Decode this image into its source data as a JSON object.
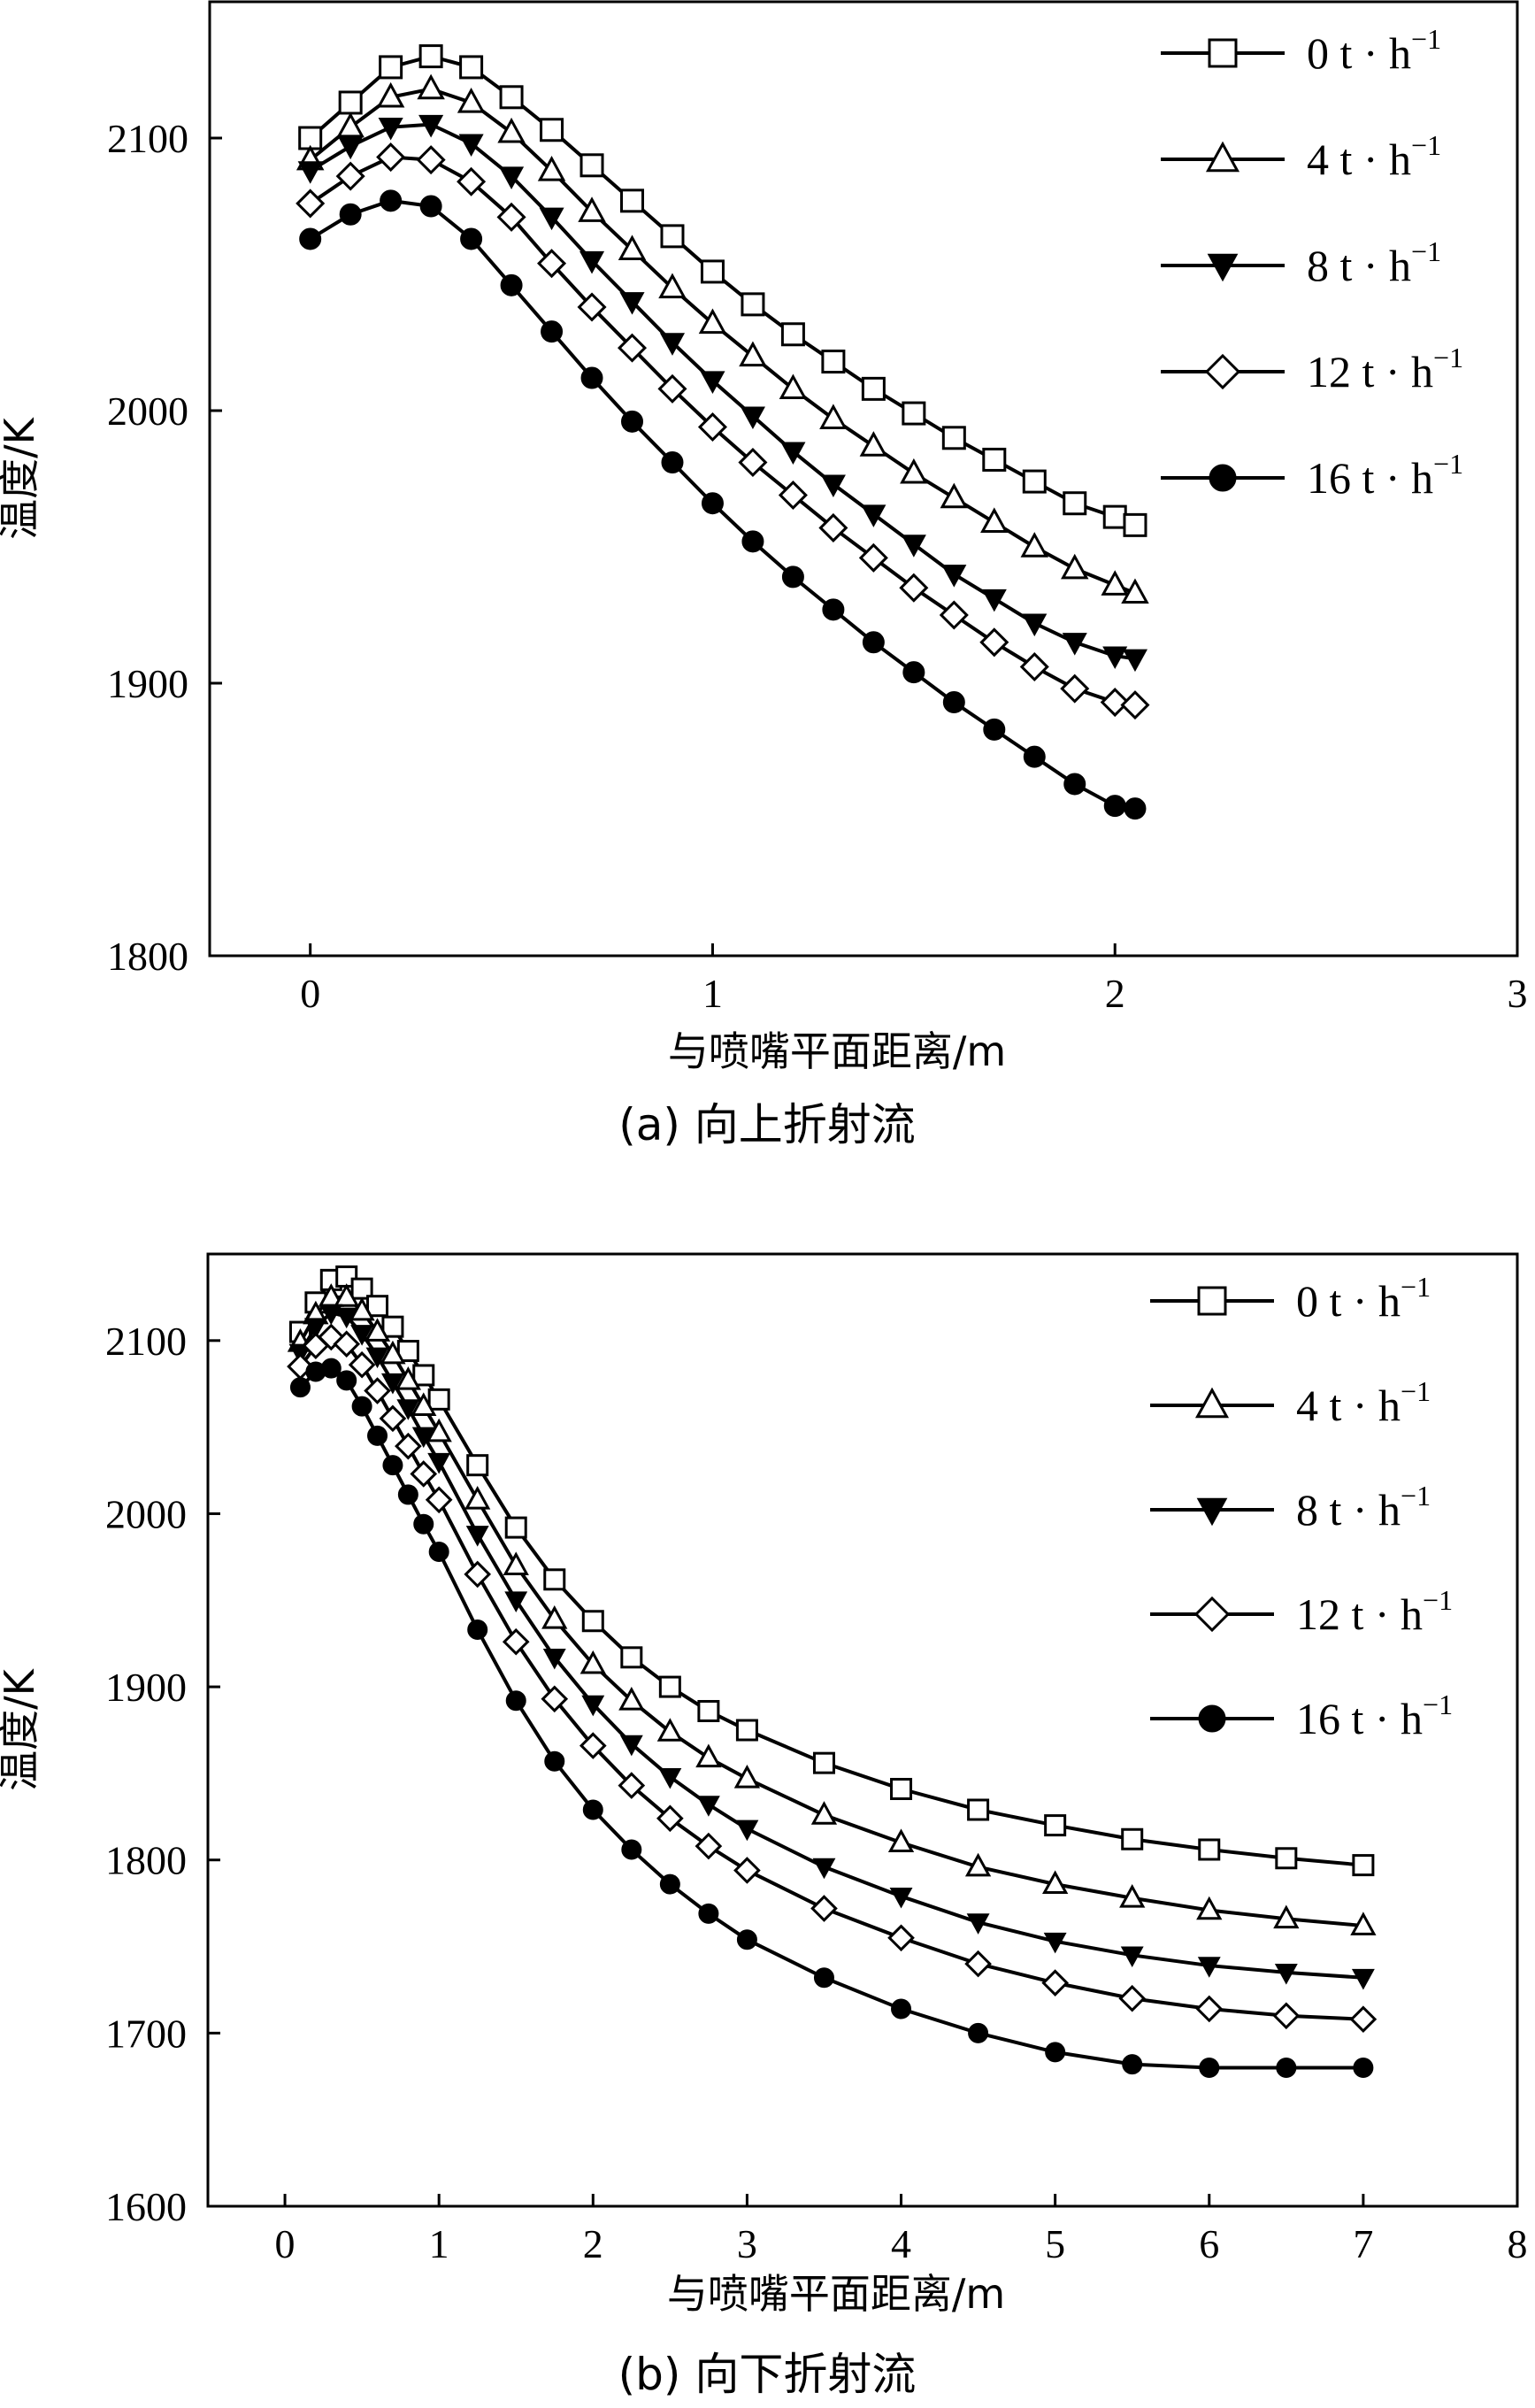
{
  "figure": {
    "panels": [
      {
        "caption": "(a) 向上折射流",
        "xlabel": "与喷嘴平面距离/m",
        "ylabel": "温度/K",
        "legend_unit": "t · h",
        "legend_exp": "−1"
      },
      {
        "caption": "(b) 向下折射流",
        "xlabel": "与喷嘴平面距离/m",
        "ylabel": "温度/K",
        "legend_unit": "t · h",
        "legend_exp": "−1"
      }
    ]
  },
  "chart_data": [
    {
      "type": "line",
      "title": "(a) 向上折射流",
      "xlabel": "与喷嘴平面距离/m",
      "ylabel": "温度/K",
      "xlim": [
        -0.25,
        3
      ],
      "ylim": [
        1800,
        2150
      ],
      "xticks": [
        0,
        1,
        2,
        3
      ],
      "yticks": [
        1800,
        1900,
        2000,
        2100
      ],
      "grid": false,
      "legend_position": "top-right",
      "x": [
        0,
        0.1,
        0.2,
        0.3,
        0.4,
        0.5,
        0.6,
        0.7,
        0.8,
        0.9,
        1.0,
        1.1,
        1.2,
        1.3,
        1.4,
        1.5,
        1.6,
        1.7,
        1.8,
        1.9,
        2.0,
        2.05
      ],
      "series": [
        {
          "name": "0",
          "marker": "square-open",
          "values": [
            2100,
            2113,
            2126,
            2130,
            2126,
            2115,
            2103,
            2090,
            2077,
            2064,
            2051,
            2039,
            2028,
            2018,
            2008,
            1999,
            1990,
            1982,
            1974,
            1966,
            1961,
            1958
          ]
        },
        {
          "name": "4",
          "marker": "triangle-open",
          "values": [
            2092,
            2104,
            2115,
            2118,
            2113,
            2102,
            2088,
            2073,
            2059,
            2045,
            2032,
            2020,
            2008,
            1997,
            1987,
            1977,
            1968,
            1959,
            1950,
            1942,
            1936,
            1933
          ]
        },
        {
          "name": "8",
          "marker": "triangle-down-filled",
          "values": [
            2088,
            2097,
            2104,
            2105,
            2098,
            2086,
            2071,
            2055,
            2040,
            2025,
            2011,
            1998,
            1985,
            1973,
            1962,
            1951,
            1940,
            1931,
            1922,
            1915,
            1910,
            1909
          ]
        },
        {
          "name": "12",
          "marker": "diamond-open",
          "values": [
            2076,
            2086,
            2093,
            2092,
            2084,
            2071,
            2054,
            2038,
            2023,
            2008,
            1994,
            1981,
            1969,
            1957,
            1946,
            1935,
            1925,
            1915,
            1906,
            1898,
            1893,
            1892
          ]
        },
        {
          "name": "16",
          "marker": "circle-filled",
          "values": [
            2063,
            2072,
            2077,
            2075,
            2063,
            2046,
            2029,
            2012,
            1996,
            1981,
            1966,
            1952,
            1939,
            1927,
            1915,
            1904,
            1893,
            1883,
            1873,
            1863,
            1855,
            1854
          ]
        }
      ]
    },
    {
      "type": "line",
      "title": "(b) 向下折射流",
      "xlabel": "与喷嘴平面距离/m",
      "ylabel": "温度/K",
      "xlim": [
        -0.5,
        8
      ],
      "ylim": [
        1600,
        2150
      ],
      "xticks": [
        0,
        1,
        2,
        3,
        4,
        5,
        6,
        7,
        8
      ],
      "yticks": [
        1600,
        1700,
        1800,
        1900,
        2000,
        2100
      ],
      "grid": false,
      "legend_position": "top-right",
      "x": [
        0.1,
        0.2,
        0.3,
        0.4,
        0.5,
        0.6,
        0.7,
        0.8,
        0.9,
        1.0,
        1.25,
        1.5,
        1.75,
        2.0,
        2.25,
        2.5,
        2.75,
        3.0,
        3.5,
        4.0,
        4.5,
        5.0,
        5.5,
        6.0,
        6.5,
        7.0
      ],
      "series": [
        {
          "name": "0",
          "marker": "square-open",
          "values": [
            2105,
            2122,
            2135,
            2137,
            2130,
            2120,
            2108,
            2094,
            2080,
            2066,
            2028,
            1992,
            1962,
            1938,
            1917,
            1900,
            1886,
            1875,
            1856,
            1841,
            1829,
            1820,
            1812,
            1806,
            1801,
            1797
          ]
        },
        {
          "name": "4",
          "marker": "triangle-open",
          "values": [
            2099,
            2115,
            2125,
            2125,
            2117,
            2105,
            2092,
            2077,
            2062,
            2047,
            2008,
            1970,
            1939,
            1913,
            1892,
            1874,
            1859,
            1847,
            1826,
            1810,
            1796,
            1786,
            1778,
            1771,
            1766,
            1762
          ]
        },
        {
          "name": "8",
          "marker": "triangle-down-filled",
          "values": [
            2093,
            2108,
            2116,
            2114,
            2104,
            2091,
            2076,
            2061,
            2045,
            2030,
            1988,
            1950,
            1917,
            1890,
            1867,
            1848,
            1832,
            1818,
            1796,
            1779,
            1764,
            1753,
            1745,
            1739,
            1735,
            1732
          ]
        },
        {
          "name": "12",
          "marker": "diamond-open",
          "values": [
            2085,
            2097,
            2102,
            2098,
            2086,
            2071,
            2055,
            2039,
            2023,
            2008,
            1965,
            1926,
            1893,
            1866,
            1843,
            1824,
            1808,
            1794,
            1772,
            1755,
            1740,
            1729,
            1720,
            1714,
            1710,
            1708
          ]
        },
        {
          "name": "16",
          "marker": "circle-filled",
          "values": [
            2073,
            2082,
            2084,
            2077,
            2062,
            2045,
            2028,
            2011,
            1994,
            1978,
            1933,
            1892,
            1857,
            1829,
            1806,
            1786,
            1769,
            1754,
            1732,
            1714,
            1700,
            1689,
            1682,
            1680,
            1680,
            1680
          ]
        }
      ]
    }
  ]
}
